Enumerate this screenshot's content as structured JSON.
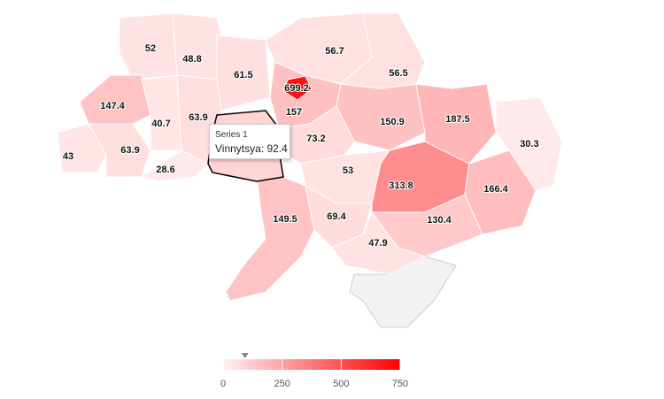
{
  "chart_data": {
    "type": "map",
    "values": [
      52,
      48.8,
      61.5,
      56.7,
      56.5,
      147.4,
      40.7,
      63.9,
      157,
      150.9,
      187.5,
      73.2,
      30.3,
      43,
      63.9,
      28.6,
      53,
      313.8,
      166.4,
      149.5,
      69.4,
      130.4,
      47.9,
      699.2
    ],
    "tooltip": {
      "series": "Series 1",
      "region": "Vinnytsya",
      "value": 92.4
    },
    "colors": [
      "#fff3f4",
      "#ff0000"
    ],
    "lim": [
      0,
      750
    ],
    "ticks": [
      0,
      250,
      500,
      750
    ]
  }
}
